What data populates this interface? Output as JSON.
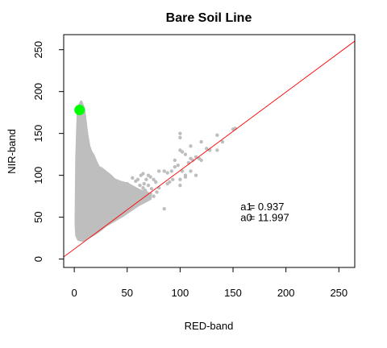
{
  "chart_data": {
    "type": "scatter",
    "title": "Bare Soil Line",
    "xlabel": "RED-band",
    "ylabel": "NIR-band",
    "xlim": [
      -10,
      265
    ],
    "ylim": [
      -10,
      268
    ],
    "xticks": [
      0,
      50,
      100,
      150,
      200,
      250
    ],
    "yticks": [
      0,
      50,
      100,
      150,
      200,
      250
    ],
    "xtick_labels": [
      "0",
      "50",
      "100",
      "150",
      "200",
      "250"
    ],
    "ytick_labels": [
      "0",
      "50",
      "100",
      "150",
      "200",
      "250"
    ],
    "grid": false,
    "point_color": "#bebebe",
    "line_color": "#ff0000",
    "highlight_color": "#00ff00",
    "fit_line": {
      "slope": 0.937,
      "intercept": 11.997
    },
    "highlight_point": {
      "x": 5,
      "y": 178
    },
    "annotations": [
      {
        "key": "a1",
        "text": "= 0.937",
        "x": 157,
        "y": 63
      },
      {
        "key": "a0",
        "text": "= 11.997",
        "x": 157,
        "y": 50
      }
    ],
    "sparse_points": [
      [
        60,
        95
      ],
      [
        63,
        100
      ],
      [
        68,
        95
      ],
      [
        70,
        100
      ],
      [
        72,
        98
      ],
      [
        66,
        90
      ],
      [
        62,
        88
      ],
      [
        75,
        95
      ],
      [
        55,
        97
      ],
      [
        58,
        93
      ],
      [
        65,
        102
      ],
      [
        80,
        105
      ],
      [
        85,
        105
      ],
      [
        88,
        103
      ],
      [
        92,
        105
      ],
      [
        95,
        110
      ],
      [
        98,
        112
      ],
      [
        95,
        118
      ],
      [
        100,
        130
      ],
      [
        102,
        128
      ],
      [
        105,
        125
      ],
      [
        110,
        135
      ],
      [
        100,
        150
      ],
      [
        100,
        145
      ],
      [
        110,
        120
      ],
      [
        112,
        118
      ],
      [
        115,
        122
      ],
      [
        118,
        120
      ],
      [
        120,
        118
      ],
      [
        108,
        115
      ],
      [
        102,
        105
      ],
      [
        105,
        100
      ],
      [
        110,
        105
      ],
      [
        120,
        140
      ],
      [
        125,
        132
      ],
      [
        128,
        130
      ],
      [
        135,
        148
      ],
      [
        135,
        130
      ],
      [
        140,
        140
      ],
      [
        150,
        155
      ],
      [
        152,
        156
      ],
      [
        100,
        88
      ],
      [
        85,
        60
      ],
      [
        80,
        85
      ],
      [
        78,
        80
      ],
      [
        72,
        78
      ],
      [
        90,
        92
      ],
      [
        93,
        95
      ],
      [
        88,
        90
      ],
      [
        105,
        98
      ],
      [
        100,
        95
      ],
      [
        115,
        100
      ],
      [
        75,
        75
      ],
      [
        70,
        72
      ],
      [
        68,
        70
      ],
      [
        60,
        80
      ],
      [
        62,
        75
      ],
      [
        64,
        68
      ],
      [
        58,
        70
      ],
      [
        50,
        90
      ],
      [
        52,
        85
      ],
      [
        55,
        82
      ],
      [
        48,
        80
      ],
      [
        47,
        76
      ],
      [
        45,
        82
      ],
      [
        65,
        85
      ],
      [
        67,
        82
      ],
      [
        70,
        88
      ],
      [
        73,
        84
      ],
      [
        77,
        92
      ]
    ]
  }
}
